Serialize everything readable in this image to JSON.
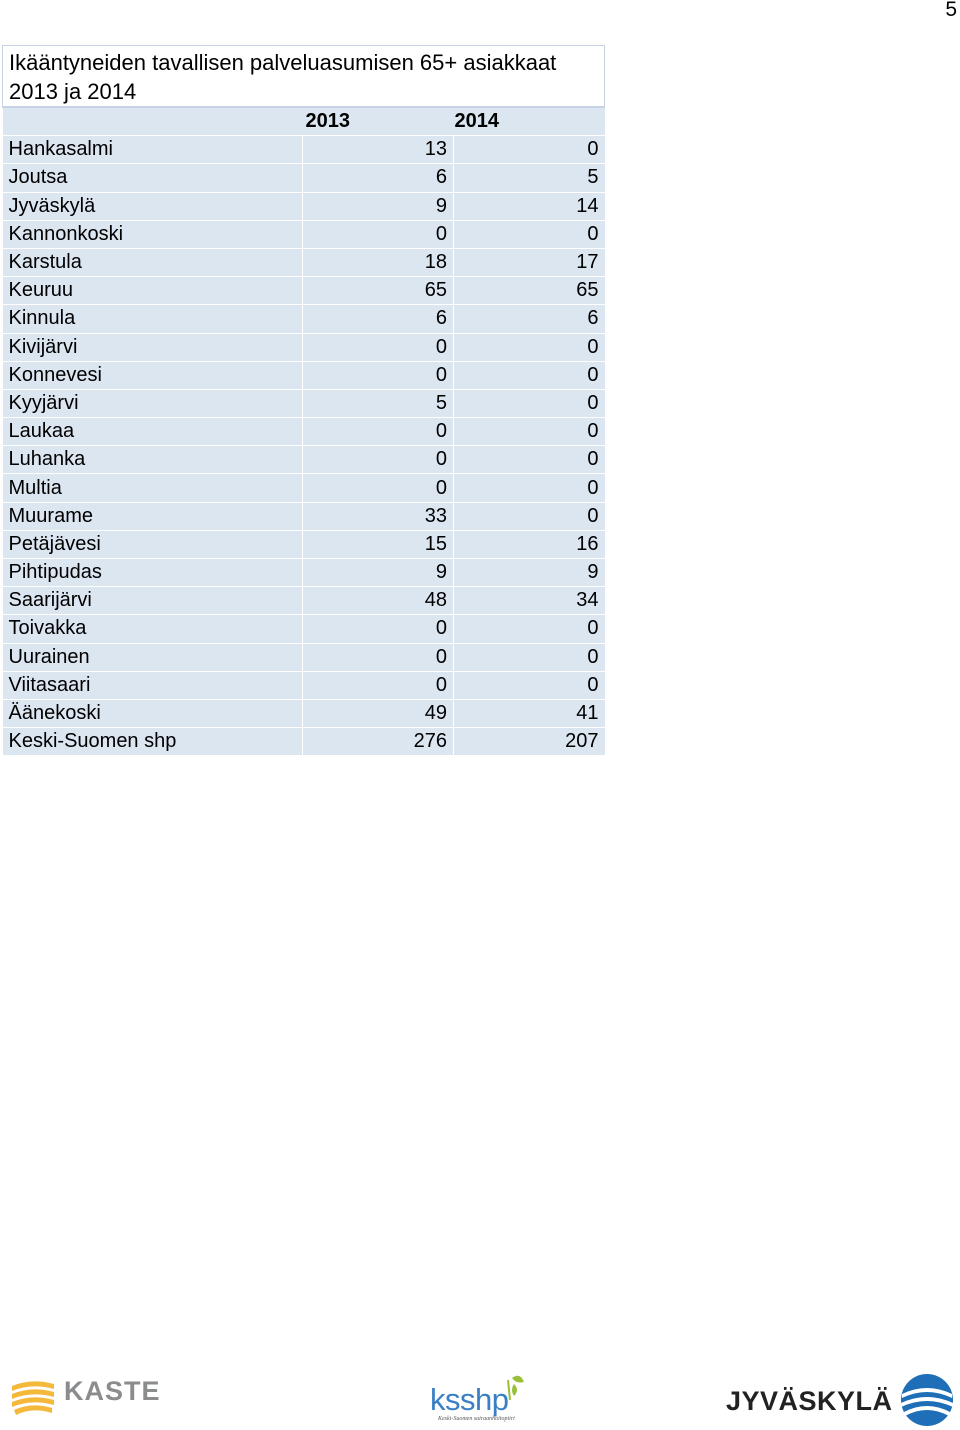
{
  "page_number": "5",
  "table": {
    "title": "Ikääntyneiden tavallisen palveluasumisen 65+ asiakkaat  2013 ja 2014",
    "columns": [
      "2013",
      "2014"
    ],
    "rows": [
      {
        "label": "Hankasalmi",
        "y2013": "13",
        "y2014": "0"
      },
      {
        "label": "Joutsa",
        "y2013": "6",
        "y2014": "5"
      },
      {
        "label": "Jyväskylä",
        "y2013": "9",
        "y2014": "14"
      },
      {
        "label": "Kannonkoski",
        "y2013": "0",
        "y2014": "0"
      },
      {
        "label": "Karstula",
        "y2013": "18",
        "y2014": "17"
      },
      {
        "label": "Keuruu",
        "y2013": "65",
        "y2014": "65"
      },
      {
        "label": "Kinnula",
        "y2013": "6",
        "y2014": "6"
      },
      {
        "label": "Kivijärvi",
        "y2013": "0",
        "y2014": "0"
      },
      {
        "label": "Konnevesi",
        "y2013": "0",
        "y2014": "0"
      },
      {
        "label": "Kyyjärvi",
        "y2013": "5",
        "y2014": "0"
      },
      {
        "label": "Laukaa",
        "y2013": "0",
        "y2014": "0"
      },
      {
        "label": "Luhanka",
        "y2013": "0",
        "y2014": "0"
      },
      {
        "label": "Multia",
        "y2013": "0",
        "y2014": "0"
      },
      {
        "label": "Muurame",
        "y2013": "33",
        "y2014": "0"
      },
      {
        "label": "Petäjävesi",
        "y2013": "15",
        "y2014": "16"
      },
      {
        "label": "Pihtipudas",
        "y2013": "9",
        "y2014": "9"
      },
      {
        "label": "Saarijärvi",
        "y2013": "48",
        "y2014": "34"
      },
      {
        "label": "Toivakka",
        "y2013": "0",
        "y2014": "0"
      },
      {
        "label": "Uurainen",
        "y2013": "0",
        "y2014": "0"
      },
      {
        "label": "Viitasaari",
        "y2013": "0",
        "y2014": "0"
      },
      {
        "label": "Äänekoski",
        "y2013": "49",
        "y2014": "41"
      },
      {
        "label": "Keski-Suomen shp",
        "y2013": "276",
        "y2014": "207"
      }
    ]
  },
  "logos": {
    "kaste": "KASTE",
    "ksshp": "ksshp",
    "ksshp_sub": "Keski-Suomen sairaanhoitopiiri",
    "jyvaskyla": "JYVÄSKYLÄ"
  },
  "colors": {
    "row_fill": "#dce6f1",
    "kaste_yellow": "#f4b83a",
    "kaste_text": "#8a8c8e",
    "ksshp_blue": "#3a7fc4",
    "ksshp_green": "#9bbf3a",
    "jkl_blue": "#1e6fb7"
  }
}
